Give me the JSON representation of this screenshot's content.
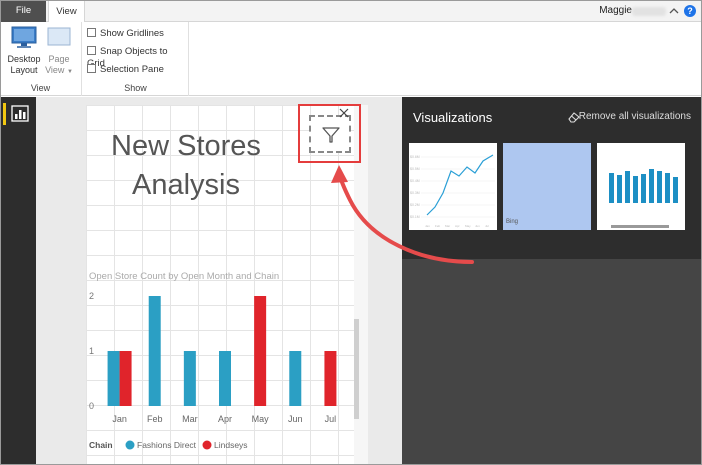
{
  "ribbon": {
    "tabs": [
      {
        "label": "File"
      },
      {
        "label": "View"
      }
    ],
    "user_name": "Maggie",
    "help_glyph": "?",
    "groups": {
      "view": {
        "label": "View",
        "desktop_layout_label": "Desktop Layout",
        "page_view_label": "Page View"
      },
      "show": {
        "label": "Show",
        "checks": [
          {
            "label": "Show Gridlines",
            "checked": false
          },
          {
            "label": "Snap Objects to Grid",
            "checked": false
          },
          {
            "label": "Selection Pane",
            "checked": false
          }
        ]
      }
    }
  },
  "leftnav": {
    "items": [
      {
        "icon": "report-icon",
        "active": true
      }
    ]
  },
  "canvas": {
    "title_line1": "New Stores",
    "title_line2": "Analysis",
    "filter_icon": "filter-icon",
    "close_icon": "close-icon"
  },
  "visualizations": {
    "title": "Visualizations",
    "remove_all_label": "Remove all visualizations",
    "thumbnails": [
      {
        "type": "line",
        "icon": "line-chart-thumbnail"
      },
      {
        "type": "map",
        "icon": "map-thumbnail",
        "caption": "Bing"
      },
      {
        "type": "bar",
        "icon": "column-chart-thumbnail"
      }
    ]
  },
  "chart_data": {
    "type": "bar",
    "title": "Open Store Count by Open Month and Chain",
    "categories": [
      "Jan",
      "Feb",
      "Mar",
      "Apr",
      "May",
      "Jun",
      "Jul"
    ],
    "series": [
      {
        "name": "Fashions Direct",
        "color": "#2b9fc4",
        "values": [
          1,
          2,
          1,
          1,
          null,
          1,
          null
        ]
      },
      {
        "name": "Lindseys",
        "color": "#e0242b",
        "values": [
          1,
          null,
          null,
          null,
          2,
          null,
          1
        ]
      }
    ],
    "yticks": [
      "0",
      "1",
      "2"
    ],
    "ylim": [
      0,
      2
    ],
    "legend_title": "Chain",
    "legend_position": "bottom-left"
  },
  "colors": {
    "accent_red": "#e43c3c",
    "ribbon_file_tab": "#4f4f4f",
    "pane_dark": "#2d2d2d",
    "nav_active": "#f2c811"
  }
}
